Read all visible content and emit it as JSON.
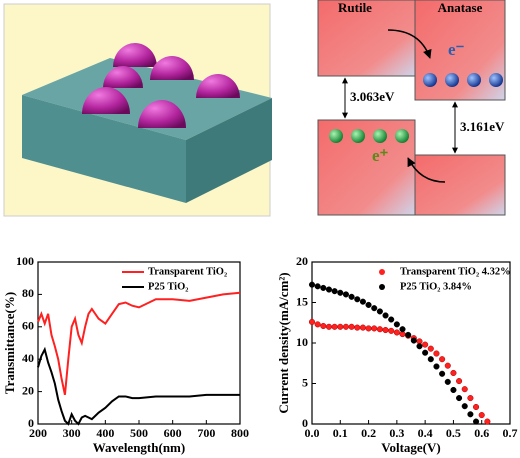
{
  "diagram": {
    "rutile": "Rutile",
    "anatase": "Anatase",
    "electron": "e⁻",
    "hole": "e⁺",
    "gap_rutile": "3.063eV",
    "gap_anatase": "3.161eV"
  },
  "chart_data": [
    {
      "type": "line",
      "xlabel": "Wavelength(nm)",
      "ylabel": "Transmittance(%)",
      "x": [
        200,
        210,
        220,
        230,
        240,
        250,
        260,
        270,
        280,
        290,
        300,
        310,
        320,
        330,
        340,
        350,
        360,
        380,
        400,
        420,
        440,
        460,
        480,
        500,
        550,
        600,
        650,
        700,
        750,
        800
      ],
      "series": [
        {
          "name": "Transparent TiO₂",
          "color": "#ff2020",
          "values": [
            63,
            68,
            62,
            68,
            55,
            48,
            40,
            28,
            18,
            40,
            60,
            65,
            55,
            50,
            60,
            68,
            71,
            65,
            62,
            68,
            74,
            75,
            73,
            72,
            77,
            77,
            76,
            78,
            80,
            81
          ]
        },
        {
          "name": "P25 TiO₂",
          "color": "#000000",
          "values": [
            35,
            42,
            46,
            38,
            32,
            25,
            15,
            8,
            2,
            0,
            6,
            2,
            0,
            4,
            5,
            4,
            3,
            7,
            10,
            14,
            17,
            17,
            16,
            16,
            17,
            17,
            17,
            18,
            18,
            18
          ]
        }
      ],
      "xlim": [
        200,
        800
      ],
      "xticks": [
        200,
        300,
        400,
        500,
        600,
        700,
        800
      ],
      "ylim": [
        0,
        100
      ],
      "yticks": [
        0,
        20,
        40,
        60,
        80,
        100
      ],
      "legend": "upper right"
    },
    {
      "type": "scatter",
      "xlabel": "Voltage(V)",
      "ylabel": "Current density(mA/cm²)",
      "series": [
        {
          "name": "Transparent TiO₂ 4.32%",
          "color": "#ff2020",
          "x": [
            0,
            0.02,
            0.04,
            0.06,
            0.08,
            0.1,
            0.12,
            0.14,
            0.16,
            0.18,
            0.2,
            0.22,
            0.24,
            0.26,
            0.28,
            0.3,
            0.32,
            0.34,
            0.36,
            0.38,
            0.4,
            0.42,
            0.44,
            0.46,
            0.48,
            0.5,
            0.52,
            0.54,
            0.56,
            0.58,
            0.6,
            0.62
          ],
          "values": [
            12.6,
            12.3,
            12.1,
            12.0,
            12.0,
            12.0,
            12.0,
            12.0,
            11.9,
            11.9,
            11.8,
            11.8,
            11.7,
            11.6,
            11.5,
            11.3,
            11.1,
            10.9,
            10.6,
            10.2,
            9.8,
            9.3,
            8.7,
            8.0,
            7.2,
            6.3,
            5.3,
            4.3,
            3.2,
            2.1,
            1.1,
            0.3
          ]
        },
        {
          "name": "P25  TiO₂ 3.84%",
          "color": "#000000",
          "x": [
            0,
            0.02,
            0.04,
            0.06,
            0.08,
            0.1,
            0.12,
            0.14,
            0.16,
            0.18,
            0.2,
            0.22,
            0.24,
            0.26,
            0.28,
            0.3,
            0.32,
            0.34,
            0.36,
            0.38,
            0.4,
            0.42,
            0.44,
            0.46,
            0.48,
            0.5,
            0.52,
            0.54,
            0.56,
            0.58
          ],
          "values": [
            17.2,
            17.0,
            16.8,
            16.6,
            16.4,
            16.2,
            16.0,
            15.7,
            15.4,
            15.1,
            14.7,
            14.3,
            13.9,
            13.4,
            12.9,
            12.3,
            11.7,
            11.0,
            10.3,
            9.6,
            8.8,
            8.0,
            7.1,
            6.2,
            5.2,
            4.2,
            3.2,
            2.2,
            1.2,
            0.3
          ]
        }
      ],
      "xlim": [
        0,
        0.7
      ],
      "xticks": [
        {
          "value": 0,
          "label": "0.0"
        },
        0.1,
        0.2,
        0.3,
        0.4,
        0.5,
        0.6,
        0.7
      ],
      "ylim": [
        0,
        20
      ],
      "yticks": [
        0,
        5,
        10,
        15,
        20
      ],
      "legend": "upper right"
    }
  ]
}
